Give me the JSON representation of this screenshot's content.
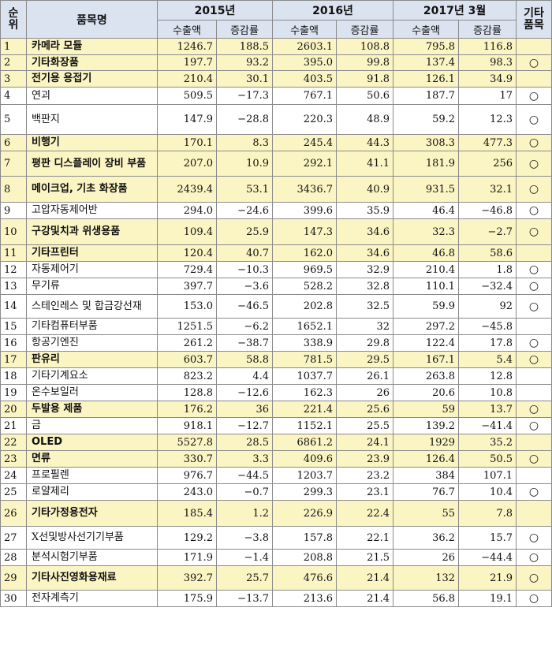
{
  "header": {
    "rank": "순위",
    "item": "품목명",
    "year1": "2015년",
    "year2": "2016년",
    "year3": "2017년 3월",
    "misc": "기타품목",
    "export": "수출액",
    "change": "증감률"
  },
  "rows": [
    {
      "rank": "1",
      "name": "카메라 모듈",
      "a": "1246.7",
      "b": "188.5",
      "c": "2603.1",
      "d": "108.8",
      "e": "795.8",
      "f": "116.8",
      "g": "",
      "hl": true
    },
    {
      "rank": "2",
      "name": "기타화장품",
      "a": "197.7",
      "b": "93.2",
      "c": "395.0",
      "d": "99.8",
      "e": "137.4",
      "f": "98.3",
      "g": "○",
      "hl": true
    },
    {
      "rank": "3",
      "name": "전기용 용접기",
      "a": "210.4",
      "b": "30.1",
      "c": "403.5",
      "d": "91.8",
      "e": "126.1",
      "f": "34.9",
      "g": "",
      "hl": true
    },
    {
      "rank": "4",
      "name": "연괴",
      "a": "509.5",
      "b": "−17.3",
      "c": "767.1",
      "d": "50.6",
      "e": "187.7",
      "f": "17",
      "g": "○",
      "hl": false
    },
    {
      "rank": "5",
      "name": "백판지",
      "a": "147.9",
      "b": "−28.8",
      "c": "220.3",
      "d": "48.9",
      "e": "59.2",
      "f": "12.3",
      "g": "○",
      "hl": false
    },
    {
      "rank": "6",
      "name": "비행기",
      "a": "170.1",
      "b": "8.3",
      "c": "245.4",
      "d": "44.3",
      "e": "308.3",
      "f": "477.3",
      "g": "○",
      "hl": true
    },
    {
      "rank": "7",
      "name": "평판 디스플레이 장비 부품",
      "a": "207.0",
      "b": "10.9",
      "c": "292.1",
      "d": "41.1",
      "e": "181.9",
      "f": "256",
      "g": "○",
      "hl": true
    },
    {
      "rank": "8",
      "name": "메이크업, 기초 화장품",
      "a": "2439.4",
      "b": "53.1",
      "c": "3436.7",
      "d": "40.9",
      "e": "931.5",
      "f": "32.1",
      "g": "○",
      "hl": true
    },
    {
      "rank": "9",
      "name": "고압자동제어반",
      "a": "294.0",
      "b": "−24.6",
      "c": "399.6",
      "d": "35.9",
      "e": "46.4",
      "f": "−46.8",
      "g": "○",
      "hl": false
    },
    {
      "rank": "10",
      "name": "구강및치과 위생용품",
      "a": "109.4",
      "b": "25.9",
      "c": "147.3",
      "d": "34.6",
      "e": "32.3",
      "f": "−2.7",
      "g": "○",
      "hl": true
    },
    {
      "rank": "11",
      "name": "기타프린터",
      "a": "120.4",
      "b": "40.7",
      "c": "162.0",
      "d": "34.6",
      "e": "46.8",
      "f": "58.6",
      "g": "",
      "hl": true
    },
    {
      "rank": "12",
      "name": "자동제어기",
      "a": "729.4",
      "b": "−10.3",
      "c": "969.5",
      "d": "32.9",
      "e": "210.4",
      "f": "1.8",
      "g": "○",
      "hl": false
    },
    {
      "rank": "13",
      "name": "무기류",
      "a": "397.7",
      "b": "−3.6",
      "c": "528.2",
      "d": "32.8",
      "e": "110.1",
      "f": "−32.4",
      "g": "○",
      "hl": false
    },
    {
      "rank": "14",
      "name": "스테인레스 및 합금강선재",
      "a": "153.0",
      "b": "−46.5",
      "c": "202.8",
      "d": "32.5",
      "e": "59.9",
      "f": "92",
      "g": "○",
      "hl": false
    },
    {
      "rank": "15",
      "name": "기타컴퓨터부품",
      "a": "1251.5",
      "b": "−6.2",
      "c": "1652.1",
      "d": "32",
      "e": "297.2",
      "f": "−45.8",
      "g": "",
      "hl": false
    },
    {
      "rank": "16",
      "name": "항공기엔진",
      "a": "261.2",
      "b": "−38.7",
      "c": "338.9",
      "d": "29.8",
      "e": "122.4",
      "f": "17.8",
      "g": "○",
      "hl": false
    },
    {
      "rank": "17",
      "name": "판유리",
      "a": "603.7",
      "b": "58.8",
      "c": "781.5",
      "d": "29.5",
      "e": "167.1",
      "f": "5.4",
      "g": "○",
      "hl": true
    },
    {
      "rank": "18",
      "name": "기타기계요소",
      "a": "823.2",
      "b": "4.4",
      "c": "1037.7",
      "d": "26.1",
      "e": "263.8",
      "f": "12.8",
      "g": "",
      "hl": false
    },
    {
      "rank": "19",
      "name": "온수보일러",
      "a": "128.8",
      "b": "−12.6",
      "c": "162.3",
      "d": "26",
      "e": "20.6",
      "f": "10.8",
      "g": "",
      "hl": false
    },
    {
      "rank": "20",
      "name": "두발용 제품",
      "a": "176.2",
      "b": "36",
      "c": "221.4",
      "d": "25.6",
      "e": "59",
      "f": "13.7",
      "g": "○",
      "hl": true
    },
    {
      "rank": "21",
      "name": "금",
      "a": "918.1",
      "b": "−12.7",
      "c": "1152.1",
      "d": "25.5",
      "e": "139.2",
      "f": "−41.4",
      "g": "○",
      "hl": false
    },
    {
      "rank": "22",
      "name": "OLED",
      "a": "5527.8",
      "b": "28.5",
      "c": "6861.2",
      "d": "24.1",
      "e": "1929",
      "f": "35.2",
      "g": "",
      "hl": true
    },
    {
      "rank": "23",
      "name": "면류",
      "a": "330.7",
      "b": "3.3",
      "c": "409.6",
      "d": "23.9",
      "e": "126.4",
      "f": "50.5",
      "g": "○",
      "hl": true
    },
    {
      "rank": "24",
      "name": "프로필렌",
      "a": "976.7",
      "b": "−44.5",
      "c": "1203.7",
      "d": "23.2",
      "e": "384",
      "f": "107.1",
      "g": "",
      "hl": false
    },
    {
      "rank": "25",
      "name": "로얄제리",
      "a": "243.0",
      "b": "−0.7",
      "c": "299.3",
      "d": "23.1",
      "e": "76.7",
      "f": "10.4",
      "g": "○",
      "hl": false
    },
    {
      "rank": "26",
      "name": "기타가정용전자",
      "a": "185.4",
      "b": "1.2",
      "c": "226.9",
      "d": "22.4",
      "e": "55",
      "f": "7.8",
      "g": "",
      "hl": true
    },
    {
      "rank": "27",
      "name": "X선및방사선기기부품",
      "a": "129.2",
      "b": "−3.8",
      "c": "157.8",
      "d": "22.1",
      "e": "36.2",
      "f": "15.7",
      "g": "○",
      "hl": false
    },
    {
      "rank": "28",
      "name": "분석시험기부품",
      "a": "171.9",
      "b": "−1.4",
      "c": "208.8",
      "d": "21.5",
      "e": "26",
      "f": "−44.4",
      "g": "○",
      "hl": false
    },
    {
      "rank": "29",
      "name": "기타사진영화용재료",
      "a": "392.7",
      "b": "25.7",
      "c": "476.6",
      "d": "21.4",
      "e": "132",
      "f": "21.9",
      "g": "○",
      "hl": true
    },
    {
      "rank": "30",
      "name": "전자계측기",
      "a": "175.9",
      "b": "−13.7",
      "c": "213.6",
      "d": "21.4",
      "e": "56.8",
      "f": "19.1",
      "g": "○",
      "hl": false
    }
  ]
}
